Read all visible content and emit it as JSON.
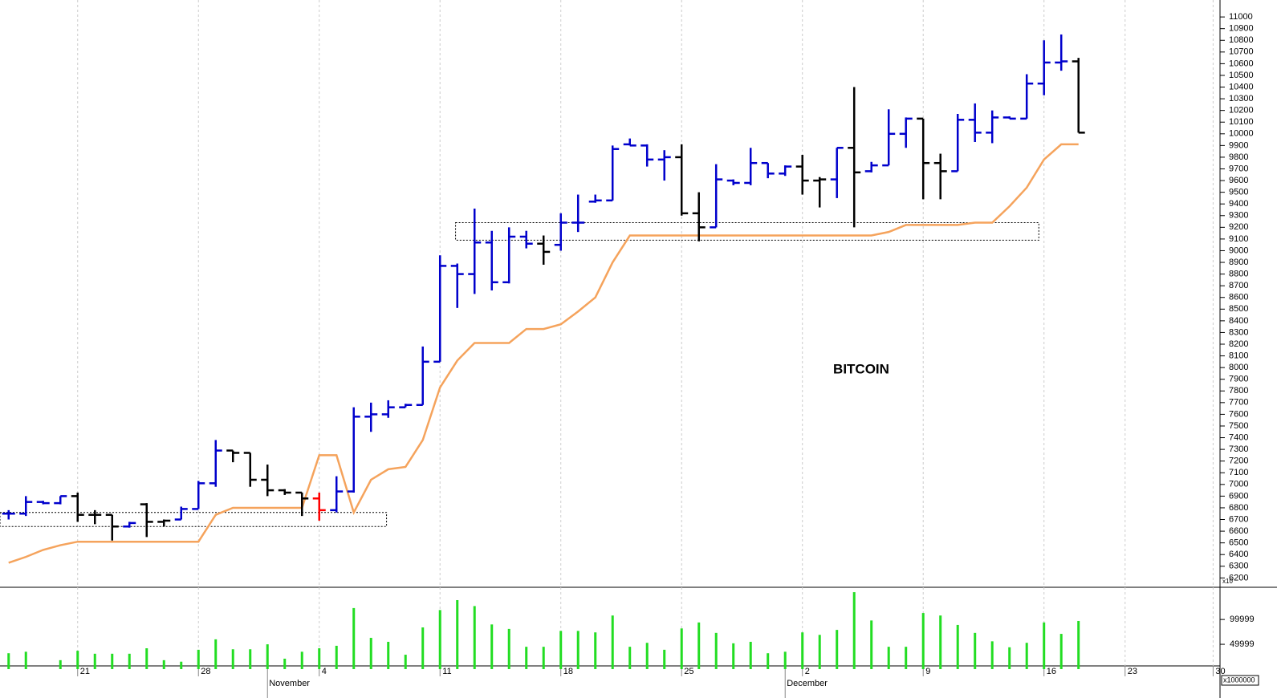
{
  "chart_data": [
    {
      "type": "ohlc",
      "title": "BITCOIN",
      "open": [
        6750,
        6750,
        6850,
        6840,
        6900,
        6740,
        6740,
        6640,
        6830,
        6680,
        6700,
        6790,
        7010,
        7290,
        7270,
        7040,
        6950,
        6930,
        6880,
        6780,
        6940,
        7580,
        7600,
        7660,
        7680,
        8050,
        8870,
        8800,
        9070,
        8730,
        9120,
        9060,
        9050,
        9240,
        9420,
        9430,
        9910,
        9900,
        9780,
        9800,
        9320,
        9200,
        9600,
        9580,
        9750,
        9660,
        9720,
        9600,
        9610,
        9880,
        9680,
        9730,
        10000,
        10130,
        9750,
        9680,
        10120,
        10010,
        10140,
        10130,
        10430,
        10610,
        10620
      ],
      "high": [
        6780,
        6900,
        6860,
        6900,
        6930,
        6780,
        6740,
        6680,
        6840,
        6700,
        6810,
        7030,
        7380,
        7290,
        7270,
        7170,
        6960,
        6930,
        6930,
        7070,
        7660,
        7700,
        7720,
        7690,
        8180,
        8960,
        8890,
        9360,
        9170,
        9200,
        9170,
        9130,
        9320,
        9480,
        9480,
        9900,
        9960,
        9910,
        9860,
        9910,
        9500,
        9740,
        9610,
        9880,
        9750,
        9730,
        9820,
        9630,
        9880,
        10400,
        9760,
        10210,
        10140,
        10130,
        9830,
        10170,
        10260,
        10200,
        10150,
        10510,
        10800,
        10850,
        10650
      ],
      "low": [
        6700,
        6730,
        6830,
        6830,
        6680,
        6660,
        6520,
        6630,
        6550,
        6640,
        6700,
        6790,
        6980,
        7190,
        6980,
        6900,
        6910,
        6730,
        6690,
        6760,
        6930,
        7450,
        7570,
        7660,
        7680,
        8050,
        8510,
        8630,
        8660,
        8720,
        9020,
        8880,
        9000,
        9160,
        9410,
        9430,
        9900,
        9720,
        9600,
        9300,
        9080,
        9200,
        9560,
        9560,
        9620,
        9640,
        9480,
        9370,
        9450,
        9200,
        9670,
        9730,
        9880,
        9440,
        9440,
        9680,
        9930,
        9920,
        10130,
        10130,
        10330,
        10540,
        10010
      ],
      "close": [
        6750,
        6850,
        6840,
        6900,
        6740,
        6740,
        6640,
        6670,
        6680,
        6690,
        6790,
        7010,
        7290,
        7270,
        7040,
        6950,
        6930,
        6880,
        6780,
        6940,
        7580,
        7600,
        7660,
        7680,
        8050,
        8870,
        8800,
        9070,
        8730,
        9120,
        9060,
        8990,
        9240,
        9240,
        9430,
        9870,
        9900,
        9780,
        9800,
        9320,
        9200,
        9610,
        9580,
        9750,
        9660,
        9720,
        9600,
        9610,
        9880,
        9670,
        9730,
        10000,
        10130,
        9750,
        9680,
        10120,
        10010,
        10140,
        10130,
        10430,
        10610,
        10620,
        10010
      ],
      "colors": [
        "#0000cc",
        "#0000cc",
        "#0000cc",
        "#0000cc",
        "#000000",
        "#000000",
        "#000000",
        "#0000cc",
        "#000000",
        "#000000",
        "#0000cc",
        "#0000cc",
        "#0000cc",
        "#000000",
        "#000000",
        "#000000",
        "#000000",
        "#000000",
        "#ff0000",
        "#0000cc",
        "#0000cc",
        "#0000cc",
        "#0000cc",
        "#0000cc",
        "#0000cc",
        "#0000cc",
        "#0000cc",
        "#0000cc",
        "#0000cc",
        "#0000cc",
        "#0000cc",
        "#000000",
        "#0000cc",
        "#0000cc",
        "#0000cc",
        "#0000cc",
        "#0000cc",
        "#0000cc",
        "#0000cc",
        "#000000",
        "#000000",
        "#0000cc",
        "#0000cc",
        "#0000cc",
        "#0000cc",
        "#0000cc",
        "#000000",
        "#000000",
        "#0000cc",
        "#000000",
        "#0000cc",
        "#0000cc",
        "#0000cc",
        "#000000",
        "#000000",
        "#0000cc",
        "#0000cc",
        "#0000cc",
        "#0000cc",
        "#0000cc",
        "#0000cc",
        "#0000cc",
        "#000000"
      ],
      "line": {
        "color": "#f5a35c",
        "values": [
          6330,
          6380,
          6440,
          6480,
          6510,
          6510,
          6510,
          6510,
          6510,
          6510,
          6510,
          6510,
          6740,
          6800,
          6800,
          6800,
          6800,
          6800,
          7250,
          7250,
          6760,
          7040,
          7130,
          7150,
          7380,
          7830,
          8060,
          8210,
          8210,
          8210,
          8330,
          8330,
          8370,
          8480,
          8600,
          8900,
          9130,
          9130,
          9130,
          9130,
          9130,
          9130,
          9130,
          9130,
          9130,
          9130,
          9130,
          9130,
          9130,
          9130,
          9130,
          9160,
          9220,
          9220,
          9220,
          9220,
          9240,
          9240,
          9380,
          9540,
          9780,
          9910,
          9910
        ]
      },
      "zones": [
        {
          "x": [
            -0.5,
            21.9
          ],
          "y": [
            6640,
            6760
          ]
        },
        {
          "x": [
            25.9,
            59.7
          ],
          "y": [
            9090,
            9240
          ]
        }
      ],
      "xlim": [
        -0.5,
        70.2
      ],
      "ylim": [
        6120,
        11145
      ],
      "yticks": [
        6200,
        6300,
        6400,
        6500,
        6600,
        6700,
        6800,
        6900,
        7000,
        7100,
        7200,
        7300,
        7400,
        7500,
        7600,
        7700,
        7800,
        7900,
        8000,
        8100,
        8200,
        8300,
        8400,
        8500,
        8600,
        8700,
        8800,
        8900,
        9000,
        9100,
        9200,
        9300,
        9400,
        9500,
        9600,
        9700,
        9800,
        9900,
        10000,
        10100,
        10200,
        10300,
        10400,
        10500,
        10600,
        10700,
        10800,
        10900,
        11000
      ]
    },
    {
      "type": "bar",
      "color": "#22dd22",
      "values": [
        32000,
        35000,
        0,
        18000,
        37000,
        31000,
        31000,
        31000,
        42000,
        18000,
        15000,
        39000,
        60000,
        40000,
        40000,
        50000,
        21000,
        35000,
        42000,
        47000,
        123000,
        63000,
        55000,
        29000,
        84000,
        119000,
        139000,
        127000,
        90000,
        81000,
        45000,
        45000,
        77000,
        77000,
        74000,
        108000,
        45000,
        53000,
        39000,
        82000,
        94000,
        73000,
        52000,
        55000,
        32000,
        35000,
        74000,
        69000,
        79000,
        155000,
        98000,
        45000,
        45000,
        113000,
        108000,
        89000,
        73000,
        56000,
        44000,
        53000,
        94000,
        71000,
        97000
      ],
      "xlim": [
        -0.5,
        70.2
      ],
      "ylim": [
        0,
        160000
      ],
      "yticks": [
        49999,
        99999
      ],
      "scale_labels": [
        "x10",
        "x1000000"
      ],
      "xticks": [
        {
          "value": 4,
          "label": "21"
        },
        {
          "value": 11,
          "label": "28"
        },
        {
          "value": 18,
          "label": "4"
        },
        {
          "value": 25,
          "label": "11"
        },
        {
          "value": 32,
          "label": "18"
        },
        {
          "value": 39,
          "label": "25"
        },
        {
          "value": 46,
          "label": "2"
        },
        {
          "value": 53,
          "label": "9"
        },
        {
          "value": 60,
          "label": "16"
        },
        {
          "value": 64.7,
          "label": "23"
        },
        {
          "value": 69.8,
          "label": "30"
        }
      ],
      "months": [
        {
          "value": 15,
          "label": "November"
        },
        {
          "value": 45,
          "label": "December"
        }
      ]
    }
  ]
}
